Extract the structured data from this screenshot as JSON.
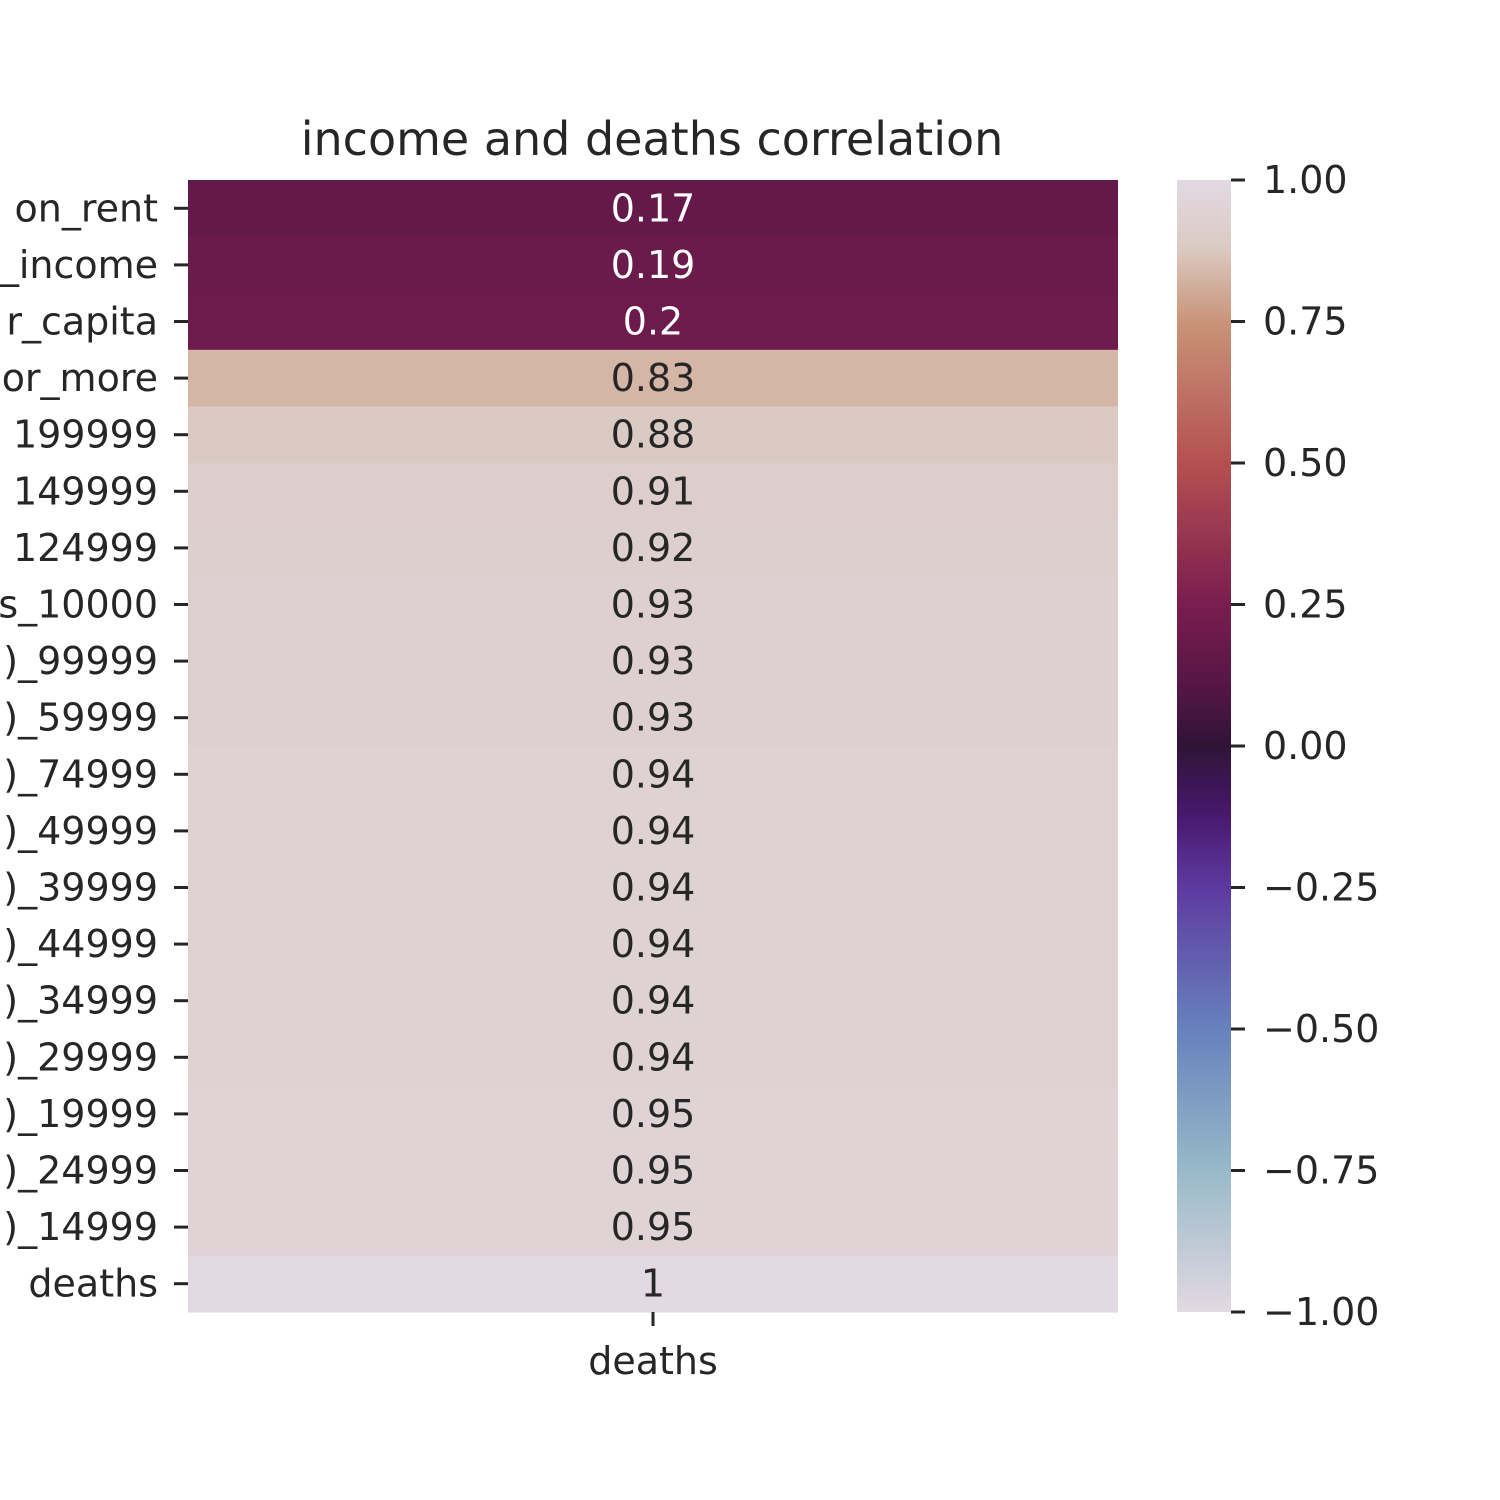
{
  "chart_data": {
    "type": "heatmap",
    "title": "income and deaths correlation",
    "columns": [
      "deaths"
    ],
    "rows": [
      "on_rent",
      "_income",
      "r_capita",
      "or_more",
      "199999",
      "149999",
      "124999",
      "s_10000",
      ")_99999",
      ")_59999",
      ")_74999",
      ")_49999",
      ")_39999",
      ")_44999",
      ")_34999",
      ")_29999",
      ")_19999",
      ")_24999",
      ")_14999",
      "deaths"
    ],
    "values": [
      0.17,
      0.19,
      0.2,
      0.83,
      0.88,
      0.91,
      0.92,
      0.93,
      0.93,
      0.93,
      0.94,
      0.94,
      0.94,
      0.94,
      0.94,
      0.94,
      0.95,
      0.95,
      0.95,
      1
    ],
    "cell_labels": [
      "0.17",
      "0.19",
      "0.2",
      "0.83",
      "0.88",
      "0.91",
      "0.92",
      "0.93",
      "0.93",
      "0.93",
      "0.94",
      "0.94",
      "0.94",
      "0.94",
      "0.94",
      "0.94",
      "0.95",
      "0.95",
      "0.95",
      "1"
    ],
    "colorbar": {
      "range": [
        -1,
        1
      ],
      "ticks": [
        1,
        0.75,
        0.5,
        0.25,
        0,
        -0.25,
        -0.5,
        -0.75,
        -1
      ],
      "tick_labels": [
        "1.00",
        "0.75",
        "0.50",
        "0.25",
        "0.00",
        "−0.25",
        "−0.50",
        "−0.75",
        "−1.00"
      ],
      "colormap": "twilight",
      "color_stops": [
        {
          "v": -1.0,
          "c": "#e2d9e2"
        },
        {
          "v": -0.75,
          "c": "#98b9c8"
        },
        {
          "v": -0.5,
          "c": "#6681bd"
        },
        {
          "v": -0.25,
          "c": "#5e3aa0"
        },
        {
          "v": -0.12,
          "c": "#47186d"
        },
        {
          "v": 0.0,
          "c": "#2f1436"
        },
        {
          "v": 0.1,
          "c": "#531545"
        },
        {
          "v": 0.25,
          "c": "#7a1d4f"
        },
        {
          "v": 0.5,
          "c": "#b55050"
        },
        {
          "v": 0.75,
          "c": "#c99478"
        },
        {
          "v": 0.88,
          "c": "#dbcac3"
        },
        {
          "v": 1.0,
          "c": "#e2d9e2"
        }
      ]
    }
  }
}
